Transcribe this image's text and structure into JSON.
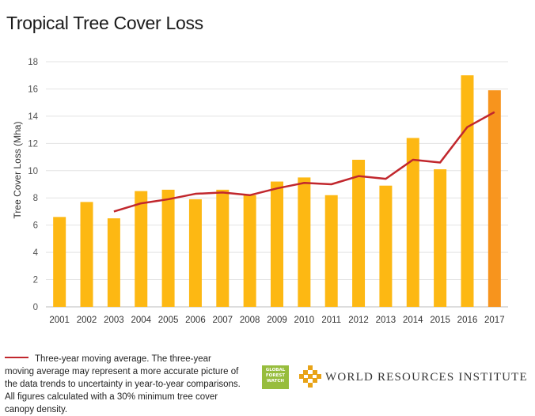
{
  "chart_data": {
    "type": "bar",
    "title": "Tropical Tree Cover Loss",
    "ylabel": "Tree Cover Loss (Mha)",
    "xlabel": "",
    "ylim": [
      0,
      18
    ],
    "yticks": [
      0,
      2,
      4,
      6,
      8,
      10,
      12,
      14,
      16,
      18
    ],
    "grid": true,
    "categories": [
      "2001",
      "2002",
      "2003",
      "2004",
      "2005",
      "2006",
      "2007",
      "2008",
      "2009",
      "2010",
      "2011",
      "2012",
      "2013",
      "2014",
      "2015",
      "2016",
      "2017"
    ],
    "series": [
      {
        "type": "bar",
        "values": [
          6.6,
          7.7,
          6.5,
          8.5,
          8.6,
          7.9,
          8.6,
          8.2,
          9.2,
          9.5,
          8.2,
          10.8,
          8.9,
          12.4,
          10.1,
          17.0,
          15.9
        ],
        "color": "#fdb813",
        "highlight_color": "#f7941d",
        "highlight_index": 16
      },
      {
        "type": "line",
        "name": "Three-year moving average",
        "values": [
          null,
          null,
          7.0,
          7.6,
          7.9,
          8.3,
          8.4,
          8.2,
          8.7,
          9.1,
          9.0,
          9.6,
          9.4,
          10.8,
          10.6,
          13.2,
          14.3
        ],
        "color": "#c1272d"
      }
    ]
  },
  "legend": {
    "text": "Three-year moving average. The three-year moving average may represent a more accurate picture of the data trends to uncertainty in year-to-year comparisons. All figures calculated with a 30% minimum tree cover canopy density."
  },
  "logos": {
    "gfw_lines": [
      "GLOBAL",
      "FOREST",
      "WATCH"
    ],
    "wri_text": "WORLD RESOURCES INSTITUTE",
    "gfw_color": "#97bd3d",
    "wri_color": "#e8a317"
  }
}
